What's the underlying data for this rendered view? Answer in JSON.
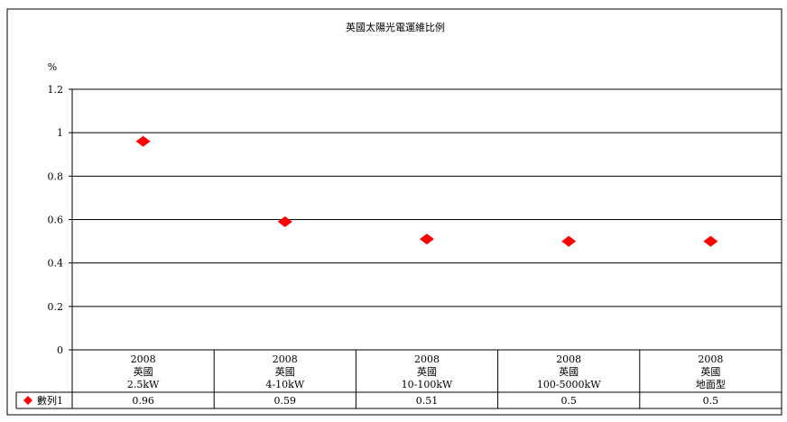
{
  "chart_data": {
    "type": "scatter",
    "title": "英國太陽光電運維比例",
    "ylabel": "%",
    "ylim": [
      0,
      1.2
    ],
    "yticks": [
      "0",
      "0.2",
      "0.4",
      "0.6",
      "0.8",
      "1",
      "1.2"
    ],
    "categories": [
      [
        "2008",
        "英國",
        "2.5kW"
      ],
      [
        "2008",
        "英國",
        "4-10kW"
      ],
      [
        "2008",
        "英國",
        "10-100kW"
      ],
      [
        "2008",
        "英國",
        "100-5000kW"
      ],
      [
        "2008",
        "英國",
        "地面型"
      ]
    ],
    "series": [
      {
        "name": "數列1",
        "values": [
          0.96,
          0.59,
          0.51,
          0.5,
          0.5
        ],
        "labels": [
          "0.96",
          "0.59",
          "0.51",
          "0.5",
          "0.5"
        ],
        "color": "#ff0000",
        "marker": "diamond"
      }
    ],
    "grid": true,
    "legend": "data-table-left"
  }
}
